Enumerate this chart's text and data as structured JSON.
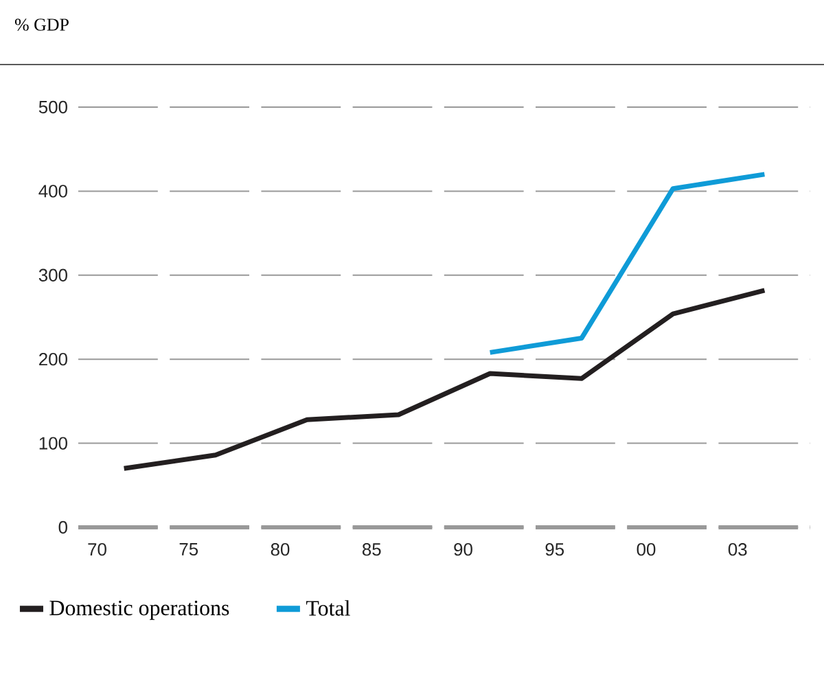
{
  "chart_data": {
    "type": "line",
    "title": "% GDP",
    "categories": [
      "70",
      "75",
      "80",
      "85",
      "90",
      "95",
      "00",
      "03"
    ],
    "ylim": [
      0,
      500
    ],
    "yticks": [
      0,
      100,
      200,
      300,
      400,
      500
    ],
    "grid": "y",
    "legend": "bottom",
    "series": [
      {
        "name": "Domestic operations",
        "color": "#231f20",
        "values": [
          70,
          86,
          128,
          134,
          183,
          177,
          254,
          282
        ]
      },
      {
        "name": "Total",
        "color": "#0f9bd7",
        "values": [
          null,
          null,
          null,
          null,
          208,
          225,
          403,
          420
        ]
      }
    ]
  }
}
